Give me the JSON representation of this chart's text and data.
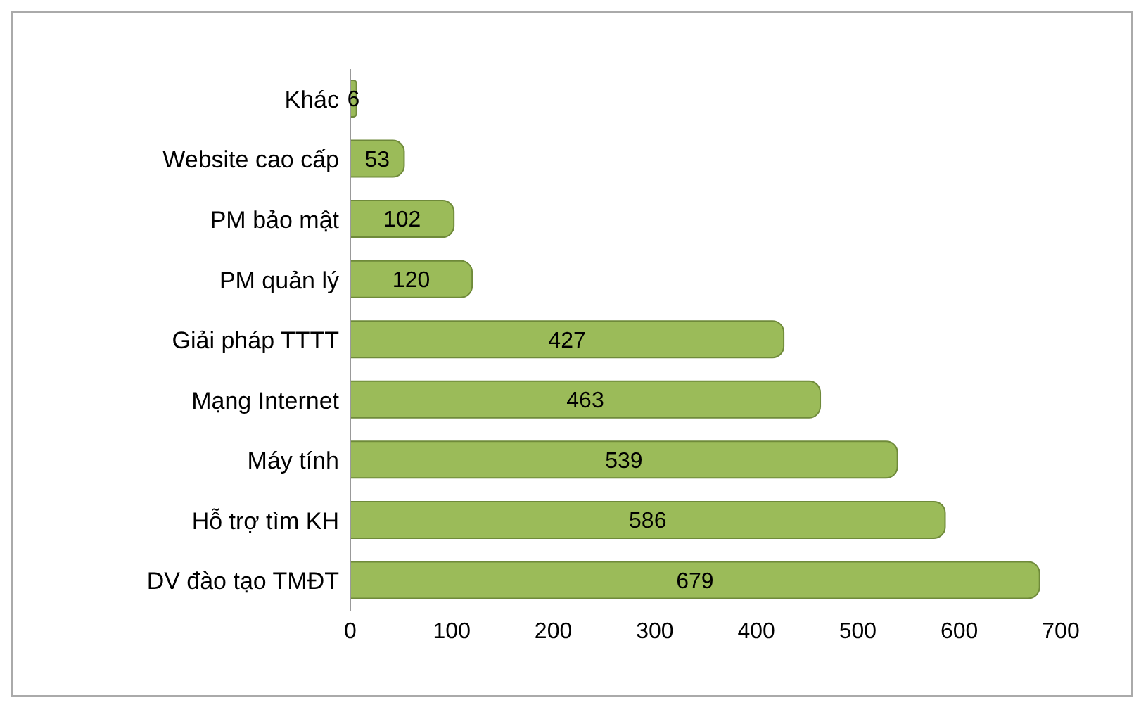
{
  "chart_data": {
    "type": "bar",
    "orientation": "horizontal",
    "categories": [
      "Khác",
      "Website cao cấp",
      "PM bảo mật",
      "PM quản lý",
      "Giải pháp TTTT",
      "Mạng Internet",
      "Máy tính",
      "Hỗ trợ tìm KH",
      "DV đào tạo TMĐT"
    ],
    "values": [
      6,
      53,
      102,
      120,
      427,
      463,
      539,
      586,
      679
    ],
    "color": "#9bbb59",
    "xlim": [
      0,
      700
    ],
    "xticks": [
      0,
      100,
      200,
      300,
      400,
      500,
      600,
      700
    ],
    "data_labels": true
  }
}
